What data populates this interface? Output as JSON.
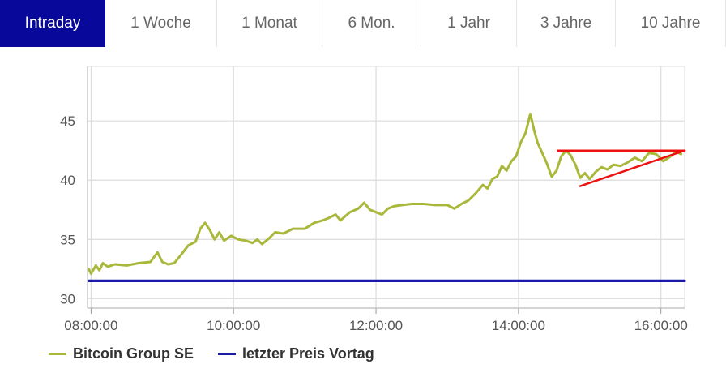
{
  "tabs": [
    {
      "label": "Intraday",
      "active": true
    },
    {
      "label": "1 Woche",
      "active": false
    },
    {
      "label": "1 Monat",
      "active": false
    },
    {
      "label": "6 Mon.",
      "active": false
    },
    {
      "label": "1 Jahr",
      "active": false
    },
    {
      "label": "3 Jahre",
      "active": false
    },
    {
      "label": "10 Jahre",
      "active": false
    }
  ],
  "colors": {
    "active_tab": "#08089a",
    "price_line": "#a9b83a",
    "prev_close_line": "#1a1aa6",
    "annotation": "#ee1111",
    "grid": "#dcdcdc"
  },
  "chart_data": {
    "type": "line",
    "x_unit": "time of day",
    "y_ticks": [
      30,
      35,
      40,
      45
    ],
    "ylim": [
      29.2,
      49.6
    ],
    "x_ticks": [
      "08:00:00",
      "10:00:00",
      "12:00:00",
      "14:00:00",
      "16:00:00"
    ],
    "xlim": [
      "07:57",
      "16:20"
    ],
    "grid": true,
    "legend_position": "bottom-left",
    "series": [
      {
        "name": "Bitcoin Group SE",
        "color": "#a9b83a",
        "points": [
          [
            "07:58",
            32.5
          ],
          [
            "08:00",
            32.1
          ],
          [
            "08:04",
            32.8
          ],
          [
            "08:07",
            32.4
          ],
          [
            "08:10",
            33.0
          ],
          [
            "08:14",
            32.7
          ],
          [
            "08:20",
            32.9
          ],
          [
            "08:30",
            32.8
          ],
          [
            "08:40",
            33.0
          ],
          [
            "08:50",
            33.1
          ],
          [
            "08:56",
            33.9
          ],
          [
            "09:00",
            33.1
          ],
          [
            "09:05",
            32.9
          ],
          [
            "09:10",
            33.0
          ],
          [
            "09:15",
            33.6
          ],
          [
            "09:22",
            34.5
          ],
          [
            "09:28",
            34.8
          ],
          [
            "09:32",
            35.9
          ],
          [
            "09:36",
            36.4
          ],
          [
            "09:40",
            35.8
          ],
          [
            "09:44",
            35.0
          ],
          [
            "09:48",
            35.6
          ],
          [
            "09:52",
            34.9
          ],
          [
            "09:58",
            35.3
          ],
          [
            "10:04",
            35.0
          ],
          [
            "10:10",
            34.9
          ],
          [
            "10:16",
            34.7
          ],
          [
            "10:20",
            35.0
          ],
          [
            "10:24",
            34.6
          ],
          [
            "10:30",
            35.1
          ],
          [
            "10:35",
            35.6
          ],
          [
            "10:42",
            35.5
          ],
          [
            "10:50",
            35.9
          ],
          [
            "11:00",
            35.9
          ],
          [
            "11:08",
            36.4
          ],
          [
            "11:15",
            36.6
          ],
          [
            "11:20",
            36.8
          ],
          [
            "11:26",
            37.1
          ],
          [
            "11:30",
            36.6
          ],
          [
            "11:38",
            37.3
          ],
          [
            "11:45",
            37.6
          ],
          [
            "11:50",
            38.1
          ],
          [
            "11:55",
            37.5
          ],
          [
            "12:00",
            37.3
          ],
          [
            "12:05",
            37.1
          ],
          [
            "12:10",
            37.6
          ],
          [
            "12:15",
            37.8
          ],
          [
            "12:22",
            37.9
          ],
          [
            "12:30",
            38.0
          ],
          [
            "12:40",
            38.0
          ],
          [
            "12:50",
            37.9
          ],
          [
            "13:00",
            37.9
          ],
          [
            "13:06",
            37.6
          ],
          [
            "13:12",
            38.0
          ],
          [
            "13:18",
            38.3
          ],
          [
            "13:24",
            38.9
          ],
          [
            "13:30",
            39.6
          ],
          [
            "13:34",
            39.3
          ],
          [
            "13:38",
            40.1
          ],
          [
            "13:42",
            40.3
          ],
          [
            "13:46",
            41.2
          ],
          [
            "13:50",
            40.8
          ],
          [
            "13:54",
            41.6
          ],
          [
            "13:58",
            42.0
          ],
          [
            "14:02",
            43.2
          ],
          [
            "14:06",
            44.0
          ],
          [
            "14:10",
            45.6
          ],
          [
            "14:13",
            44.3
          ],
          [
            "14:16",
            43.2
          ],
          [
            "14:20",
            42.3
          ],
          [
            "14:24",
            41.4
          ],
          [
            "14:28",
            40.3
          ],
          [
            "14:32",
            40.8
          ],
          [
            "14:36",
            42.0
          ],
          [
            "14:40",
            42.5
          ],
          [
            "14:44",
            42.1
          ],
          [
            "14:48",
            41.3
          ],
          [
            "14:52",
            40.2
          ],
          [
            "14:56",
            40.6
          ],
          [
            "15:00",
            40.1
          ],
          [
            "15:05",
            40.7
          ],
          [
            "15:10",
            41.1
          ],
          [
            "15:15",
            40.9
          ],
          [
            "15:20",
            41.3
          ],
          [
            "15:26",
            41.2
          ],
          [
            "15:32",
            41.5
          ],
          [
            "15:38",
            41.9
          ],
          [
            "15:44",
            41.6
          ],
          [
            "15:50",
            42.3
          ],
          [
            "15:56",
            42.2
          ],
          [
            "16:02",
            41.6
          ],
          [
            "16:08",
            42.0
          ],
          [
            "16:13",
            42.4
          ],
          [
            "16:17",
            42.2
          ]
        ]
      },
      {
        "name": "letzter Preis Vortag",
        "color": "#1a1aa6",
        "points": [
          [
            "07:58",
            31.5
          ],
          [
            "16:20",
            31.5
          ]
        ]
      }
    ],
    "annotations": [
      {
        "type": "line",
        "color": "#ee1111",
        "from": [
          "14:33",
          42.5
        ],
        "to": [
          "16:20",
          42.5
        ]
      },
      {
        "type": "line",
        "color": "#ee1111",
        "from": [
          "14:52",
          39.5
        ],
        "to": [
          "16:20",
          42.5
        ]
      }
    ]
  }
}
